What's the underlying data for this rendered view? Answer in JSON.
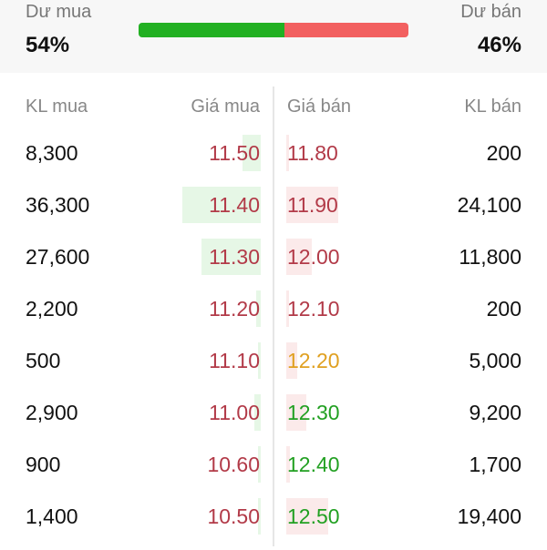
{
  "summary": {
    "buy_label": "Dư mua",
    "sell_label": "Dư bán",
    "buy_pct": "54%",
    "sell_pct": "46%",
    "buy_fraction": 0.54,
    "buy_color": "#22b022",
    "sell_color": "#f26060"
  },
  "headers": {
    "buy_vol": "KL mua",
    "buy_price": "Giá mua",
    "sell_price": "Giá bán",
    "sell_vol": "KL bán"
  },
  "colors": {
    "red": "#b23a48",
    "yellow": "#e0a020",
    "green": "#22a022",
    "buy_bar": "#e6f7e6",
    "sell_bar": "#fbeaea"
  },
  "rows": [
    {
      "buy_vol": "8,300",
      "buy_price": "11.50",
      "sell_price": "11.80",
      "sell_vol": "200",
      "buy_color": "red",
      "sell_color": "red"
    },
    {
      "buy_vol": "36,300",
      "buy_price": "11.40",
      "sell_price": "11.90",
      "sell_vol": "24,100",
      "buy_color": "red",
      "sell_color": "red"
    },
    {
      "buy_vol": "27,600",
      "buy_price": "11.30",
      "sell_price": "12.00",
      "sell_vol": "11,800",
      "buy_color": "red",
      "sell_color": "red"
    },
    {
      "buy_vol": "2,200",
      "buy_price": "11.20",
      "sell_price": "12.10",
      "sell_vol": "200",
      "buy_color": "red",
      "sell_color": "red"
    },
    {
      "buy_vol": "500",
      "buy_price": "11.10",
      "sell_price": "12.20",
      "sell_vol": "5,000",
      "buy_color": "red",
      "sell_color": "yellow"
    },
    {
      "buy_vol": "2,900",
      "buy_price": "11.00",
      "sell_price": "12.30",
      "sell_vol": "9,200",
      "buy_color": "red",
      "sell_color": "green"
    },
    {
      "buy_vol": "900",
      "buy_price": "10.60",
      "sell_price": "12.40",
      "sell_vol": "1,700",
      "buy_color": "red",
      "sell_color": "green"
    },
    {
      "buy_vol": "1,400",
      "buy_price": "10.50",
      "sell_price": "12.50",
      "sell_vol": "19,400",
      "buy_color": "red",
      "sell_color": "green"
    }
  ]
}
